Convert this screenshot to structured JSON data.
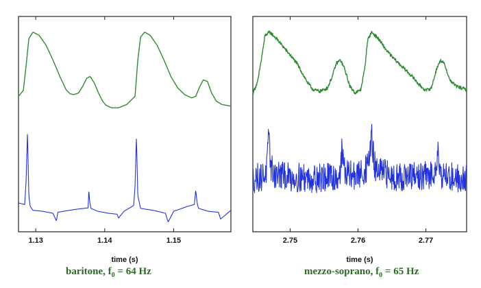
{
  "chart_data": [
    {
      "type": "line",
      "xlabel": "time (s)",
      "xlim": [
        1.1275,
        1.1583
      ],
      "x_ticks": [
        1.13,
        1.14,
        1.15
      ],
      "x_tick_labels": [
        "1.13",
        "1.14",
        "1.15"
      ],
      "series": [
        {
          "color": "#2e8b2e",
          "x": [
            1.1275,
            1.1282,
            1.1286,
            1.129,
            1.1296,
            1.1305,
            1.1315,
            1.1325,
            1.1335,
            1.1344,
            1.135,
            1.1355,
            1.1362,
            1.1368,
            1.1374,
            1.1379,
            1.1385,
            1.1391,
            1.1397,
            1.1402,
            1.141,
            1.142,
            1.1432,
            1.1444,
            1.1448,
            1.1452,
            1.1458,
            1.1466,
            1.1476,
            1.1486,
            1.1496,
            1.1506,
            1.1516,
            1.1526,
            1.1532,
            1.1538,
            1.1543,
            1.1549,
            1.1555,
            1.1562,
            1.157,
            1.1583
          ],
          "y": [
            0.18,
            0.25,
            0.55,
            0.88,
            0.96,
            0.92,
            0.8,
            0.62,
            0.42,
            0.26,
            0.21,
            0.2,
            0.22,
            0.3,
            0.4,
            0.42,
            0.34,
            0.22,
            0.12,
            0.07,
            0.04,
            0.04,
            0.08,
            0.18,
            0.62,
            0.9,
            0.96,
            0.92,
            0.8,
            0.62,
            0.42,
            0.28,
            0.2,
            0.16,
            0.18,
            0.3,
            0.38,
            0.36,
            0.22,
            0.12,
            0.08,
            0.06
          ]
        },
        {
          "color": "#2233dd",
          "x": [
            1.1275,
            1.1284,
            1.1286,
            1.1288,
            1.129,
            1.1292,
            1.1296,
            1.131,
            1.1325,
            1.133,
            1.1332,
            1.134,
            1.1358,
            1.1376,
            1.1377,
            1.1378,
            1.138,
            1.139,
            1.1405,
            1.1418,
            1.142,
            1.1428,
            1.1442,
            1.1444,
            1.1446,
            1.1448,
            1.1452,
            1.147,
            1.1488,
            1.1492,
            1.15,
            1.152,
            1.153,
            1.1532,
            1.1534,
            1.1536,
            1.155,
            1.1565,
            1.1568,
            1.1583
          ],
          "y": [
            -0.55,
            -0.58,
            -0.1,
            0.9,
            -0.4,
            -0.62,
            -0.7,
            -0.72,
            -0.76,
            -0.92,
            -0.74,
            -0.72,
            -0.68,
            -0.65,
            -0.26,
            -0.5,
            -0.66,
            -0.72,
            -0.76,
            -0.78,
            -0.86,
            -0.72,
            -0.6,
            -0.2,
            0.82,
            -0.4,
            -0.66,
            -0.7,
            -0.76,
            -0.94,
            -0.72,
            -0.62,
            -0.58,
            -0.28,
            -0.55,
            -0.66,
            -0.72,
            -0.74,
            -0.88,
            -0.7
          ]
        }
      ],
      "caption_text": "baritone,   f",
      "caption_sub": "0",
      "caption_tail": " = 64 Hz"
    },
    {
      "type": "line",
      "xlabel": "time (s)",
      "xlim": [
        2.7445,
        2.776
      ],
      "x_ticks": [
        2.75,
        2.76,
        2.77
      ],
      "x_tick_labels": [
        "2.75",
        "2.76",
        "2.77"
      ],
      "series": [
        {
          "color": "#2e8b2e",
          "x": [
            2.7445,
            2.7452,
            2.7458,
            2.7463,
            2.747,
            2.748,
            2.749,
            2.75,
            2.751,
            2.7518,
            2.7526,
            2.7534,
            2.7544,
            2.7555,
            2.7562,
            2.7568,
            2.7574,
            2.758,
            2.7588,
            2.7596,
            2.7604,
            2.761,
            2.7614,
            2.762,
            2.763,
            2.764,
            2.765,
            2.766,
            2.767,
            2.768,
            2.769,
            2.77,
            2.7708,
            2.7716,
            2.7722,
            2.7728,
            2.7735,
            2.7745,
            2.776
          ],
          "y": [
            0.22,
            0.35,
            0.65,
            0.92,
            0.96,
            0.88,
            0.78,
            0.68,
            0.58,
            0.46,
            0.34,
            0.26,
            0.24,
            0.28,
            0.42,
            0.58,
            0.62,
            0.52,
            0.3,
            0.22,
            0.26,
            0.52,
            0.86,
            0.96,
            0.88,
            0.76,
            0.66,
            0.58,
            0.5,
            0.42,
            0.32,
            0.25,
            0.28,
            0.52,
            0.62,
            0.56,
            0.38,
            0.3,
            0.26
          ],
          "noise": 0.02
        },
        {
          "color": "#2233dd",
          "x": [
            2.7445,
            2.746,
            2.7465,
            2.7468,
            2.747,
            2.7472,
            2.7476,
            2.75,
            2.754,
            2.757,
            2.7574,
            2.7576,
            2.7578,
            2.7582,
            2.76,
            2.7614,
            2.7618,
            2.762,
            2.7622,
            2.7626,
            2.765,
            2.768,
            2.771,
            2.7716,
            2.7718,
            2.772,
            2.7724,
            2.7745,
            2.776
          ],
          "y": [
            -0.05,
            0.0,
            0.1,
            0.72,
            0.5,
            0.18,
            0.05,
            -0.02,
            -0.04,
            -0.02,
            0.1,
            0.52,
            0.3,
            0.04,
            0.0,
            0.18,
            0.55,
            0.85,
            0.45,
            0.12,
            0.0,
            -0.02,
            0.02,
            0.35,
            0.48,
            0.22,
            0.02,
            -0.03,
            -0.05
          ],
          "noise": 0.3
        }
      ],
      "caption_text": "mezzo-soprano,   f",
      "caption_sub": "0",
      "caption_tail": " = 65 Hz"
    }
  ]
}
